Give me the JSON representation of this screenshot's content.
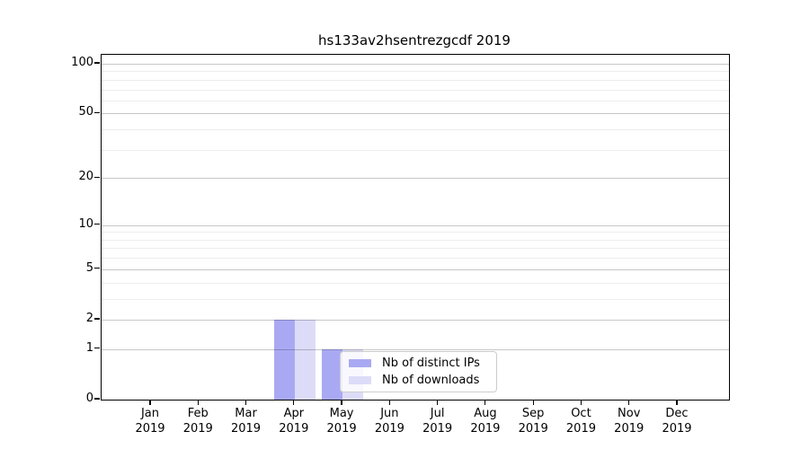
{
  "chart_data": {
    "type": "bar",
    "title": "hs133av2hsentrezgcdf 2019",
    "categories": [
      "Jan 2019",
      "Feb 2019",
      "Mar 2019",
      "Apr 2019",
      "May 2019",
      "Jun 2019",
      "Jul 2019",
      "Aug 2019",
      "Sep 2019",
      "Oct 2019",
      "Nov 2019",
      "Dec 2019"
    ],
    "series": [
      {
        "name": "Nb of distinct IPs",
        "color": "#a9a9f3",
        "values": [
          0,
          0,
          0,
          2,
          1,
          0,
          0,
          0,
          0,
          0,
          0,
          0
        ]
      },
      {
        "name": "Nb of downloads",
        "color": "#dcdcf8",
        "values": [
          0,
          0,
          0,
          2,
          1,
          0,
          0,
          0,
          0,
          0,
          0,
          0
        ]
      }
    ],
    "xlabel": "",
    "ylabel": "",
    "yscale": "log1p",
    "ylim": [
      0,
      113.2
    ],
    "y_ticks": [
      0,
      1,
      2,
      5,
      10,
      20,
      50,
      100
    ],
    "y_minor_gridlines": [
      3,
      4,
      6,
      7,
      8,
      9,
      30,
      40,
      60,
      70,
      80,
      90
    ],
    "grid": "horizontal, major and minor",
    "legend_position": "inside bottom-center",
    "colors": {
      "background": "#ffffff",
      "spine": "#000000",
      "text": "#000000",
      "legend_border": "#cccccc",
      "bar_distinct_ips": "#a9a9f3",
      "bar_downloads": "#dcdcf8"
    }
  }
}
